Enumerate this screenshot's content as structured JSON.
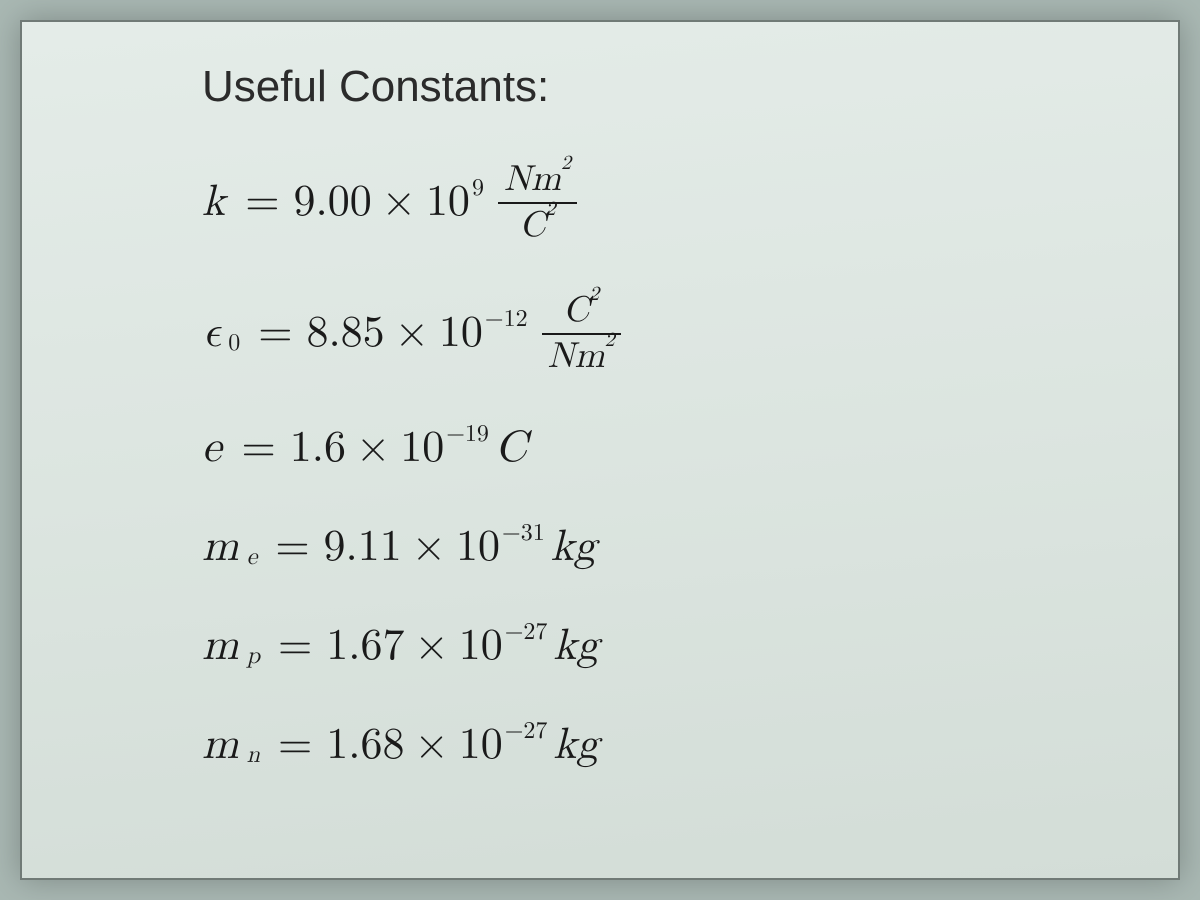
{
  "page": {
    "background_color": "#a9b8b3",
    "panel_gradient": [
      "#e4ece8",
      "#dce5e0",
      "#d3ddd7"
    ],
    "text_color": "#2b2b2b",
    "heading_font": "sans-serif",
    "body_font": "serif-italic",
    "heading_fontsize": 44,
    "equation_fontsize": 44
  },
  "heading": "Useful Constants:",
  "constants": [
    {
      "symbol": "k",
      "subscript": "",
      "equals": "=",
      "coefficient": "9.00",
      "times": "×",
      "base": "10",
      "exponent": "9",
      "unit_type": "fraction",
      "unit_num": "Nm",
      "unit_num_sup": "2",
      "unit_den": "C",
      "unit_den_sup": "2"
    },
    {
      "symbol": "ϵ",
      "subscript": "0",
      "equals": "=",
      "coefficient": "8.85",
      "times": "×",
      "base": "10",
      "exponent": "−12",
      "unit_type": "fraction",
      "unit_num": "C",
      "unit_num_sup": "2",
      "unit_den": "Nm",
      "unit_den_sup": "2"
    },
    {
      "symbol": "e",
      "subscript": "",
      "equals": "=",
      "coefficient": "1.6",
      "times": "×",
      "base": "10",
      "exponent": "−19",
      "unit_type": "inline",
      "unit": "C"
    },
    {
      "symbol": "m",
      "subscript": "e",
      "equals": "=",
      "coefficient": "9.11",
      "times": "×",
      "base": "10",
      "exponent": "−31",
      "unit_type": "inline",
      "unit": "kg"
    },
    {
      "symbol": "m",
      "subscript": "p",
      "equals": "=",
      "coefficient": "1.67",
      "times": "×",
      "base": "10",
      "exponent": "−27",
      "unit_type": "inline",
      "unit": "kg"
    },
    {
      "symbol": "m",
      "subscript": "n",
      "equals": "=",
      "coefficient": "1.68",
      "times": "×",
      "base": "10",
      "exponent": "−27",
      "unit_type": "inline",
      "unit": "kg"
    }
  ]
}
